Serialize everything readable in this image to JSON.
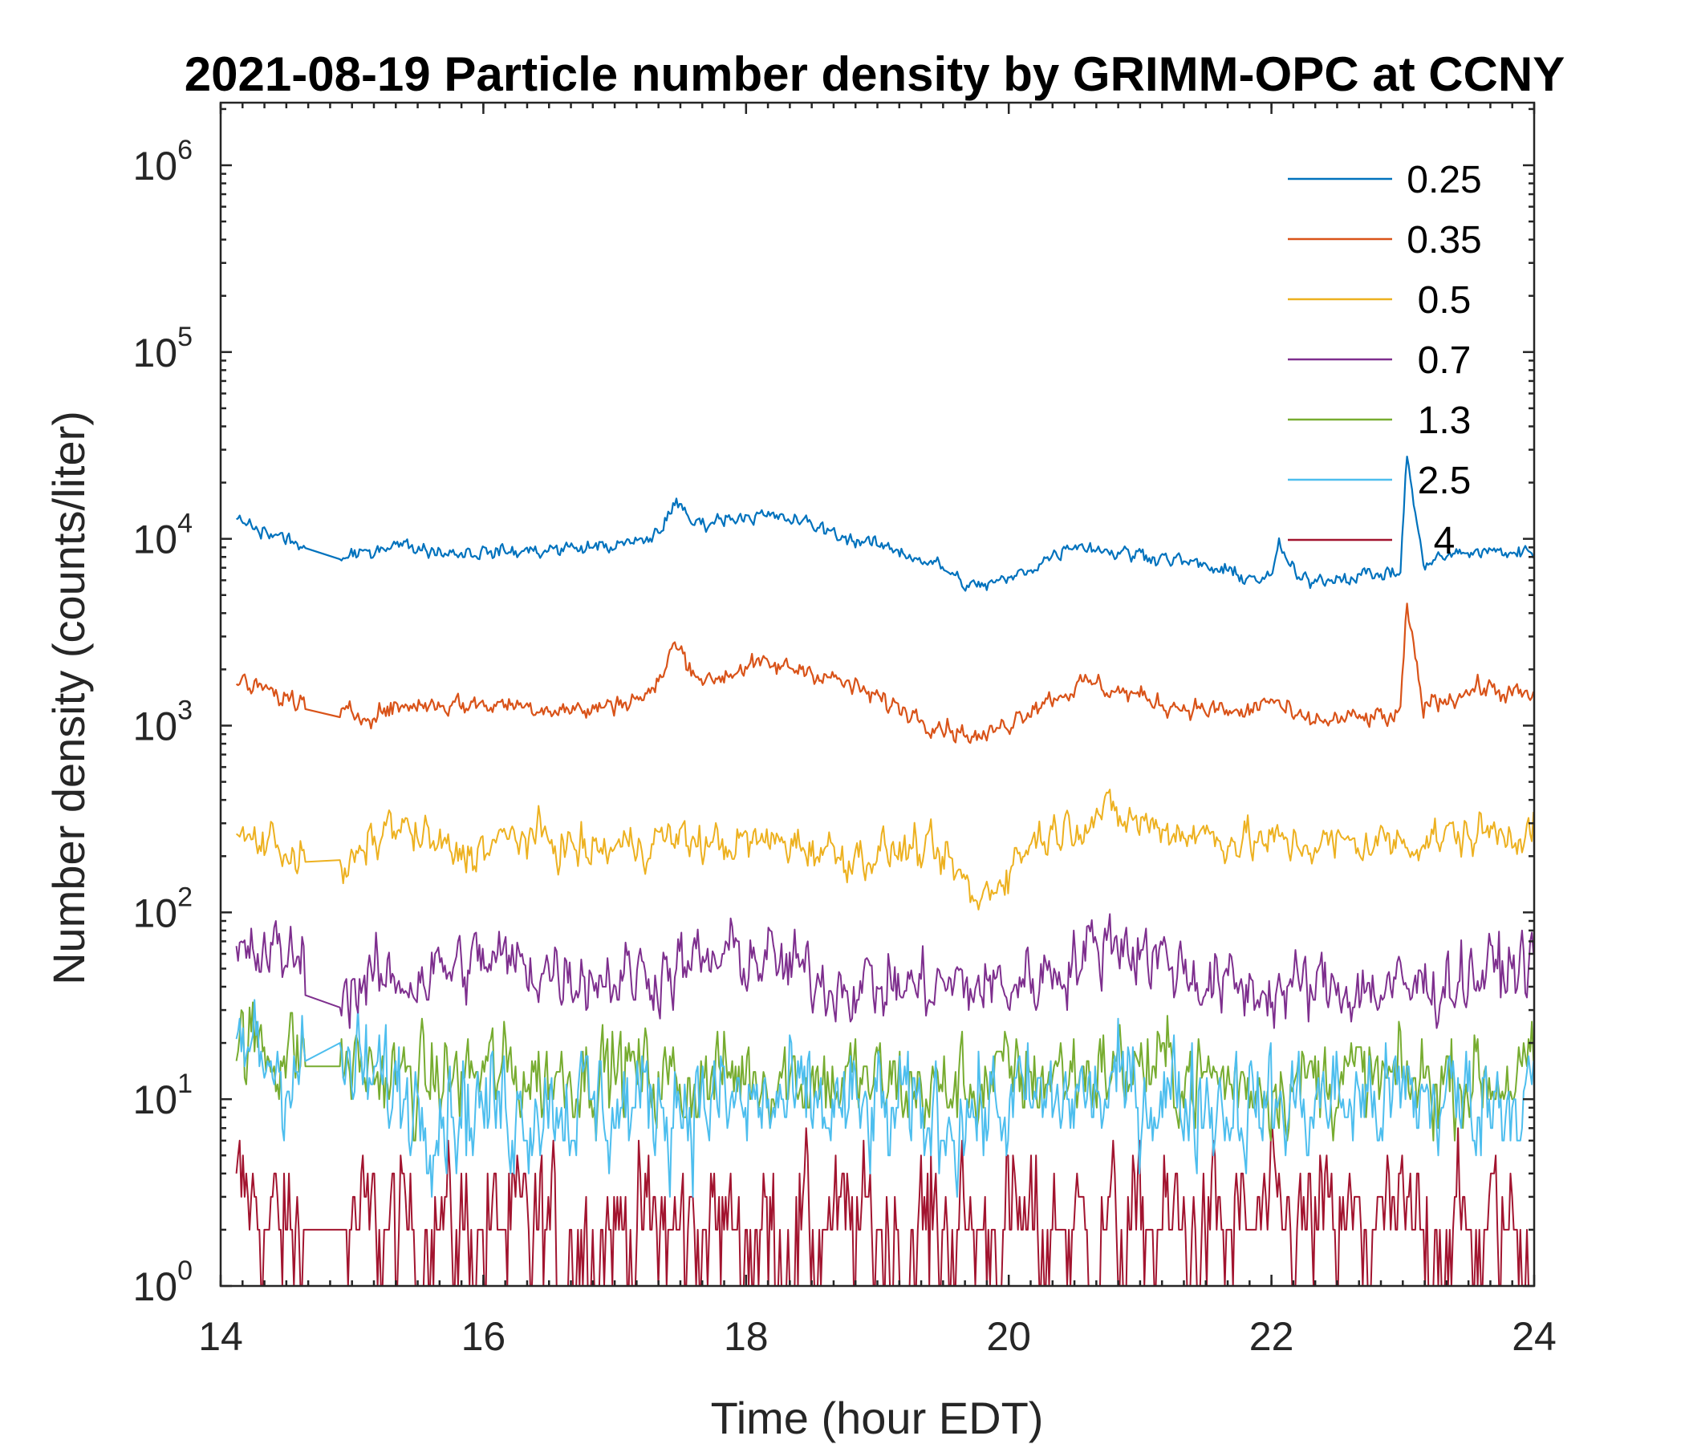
{
  "chart_data": {
    "type": "line",
    "title": "2021-08-19 Particle number density by GRIMM-OPC at CCNY",
    "xlabel": "Time (hour EDT)",
    "ylabel": "Number density (counts/liter)",
    "x_ticks": [
      "14",
      "16",
      "18",
      "20",
      "22",
      "24"
    ],
    "xlim": [
      14,
      24
    ],
    "y_scale": "log",
    "ylim": [
      1,
      2000000
    ],
    "y_ticks": [
      {
        "value": 1,
        "base": "10",
        "exp": "0"
      },
      {
        "value": 10,
        "base": "10",
        "exp": "1"
      },
      {
        "value": 100,
        "base": "10",
        "exp": "2"
      },
      {
        "value": 1000,
        "base": "10",
        "exp": "3"
      },
      {
        "value": 10000,
        "base": "10",
        "exp": "4"
      },
      {
        "value": 100000,
        "base": "10",
        "exp": "5"
      },
      {
        "value": 1000000,
        "base": "10",
        "exp": "6"
      }
    ],
    "grid": false,
    "legend_position": "top-right",
    "series": [
      {
        "name": "0.25",
        "color": "#0072BD",
        "x": [
          14.1,
          14.3,
          14.5,
          14.9,
          15.3,
          15.7,
          16.2,
          16.8,
          17.2,
          17.35,
          17.45,
          17.6,
          18.0,
          18.4,
          18.8,
          19.2,
          19.5,
          19.7,
          20.0,
          20.5,
          20.8,
          21.2,
          21.7,
          22.0,
          22.05,
          22.2,
          22.8,
          22.98,
          23.03,
          23.15,
          23.5,
          24.0
        ],
        "y": [
          13000,
          11000,
          10000,
          7500,
          9500,
          8500,
          8500,
          9000,
          9500,
          11000,
          16000,
          12000,
          13500,
          12500,
          10000,
          8500,
          7000,
          5500,
          6000,
          9500,
          8500,
          8000,
          6500,
          6000,
          9500,
          6000,
          6500,
          6500,
          28000,
          7500,
          8500,
          8500
        ]
      },
      {
        "name": "0.35",
        "color": "#D95319",
        "x": [
          14.1,
          14.4,
          14.9,
          15.5,
          16.2,
          16.8,
          17.3,
          17.45,
          17.7,
          18.0,
          18.5,
          19.0,
          19.5,
          19.8,
          20.2,
          20.6,
          21.2,
          21.8,
          22.0,
          22.2,
          22.8,
          22.98,
          23.03,
          23.15,
          23.6,
          24.0
        ],
        "y": [
          1700,
          1500,
          1100,
          1300,
          1300,
          1200,
          1500,
          2700,
          1700,
          2100,
          2000,
          1400,
          1000,
          850,
          1300,
          1700,
          1300,
          1150,
          1400,
          1050,
          1100,
          1100,
          4300,
          1300,
          1600,
          1400
        ]
      },
      {
        "name": "0.5",
        "color": "#EDB120",
        "x": [
          14.1,
          14.4,
          14.9,
          15.3,
          15.8,
          16.3,
          16.8,
          17.4,
          17.8,
          18.3,
          18.8,
          19.3,
          19.6,
          19.75,
          20.2,
          20.7,
          21.2,
          21.8,
          22.4,
          23.0,
          23.5,
          24.0
        ],
        "y": [
          250,
          240,
          150,
          300,
          200,
          260,
          210,
          250,
          230,
          240,
          200,
          220,
          170,
          110,
          250,
          340,
          280,
          240,
          230,
          240,
          260,
          280
        ]
      },
      {
        "name": "0.7",
        "color": "#7E2F8E",
        "x": [
          14.1,
          14.5,
          14.9,
          15.5,
          16.0,
          16.5,
          17.0,
          17.5,
          18.0,
          18.5,
          19.0,
          19.5,
          20.0,
          20.5,
          20.8,
          21.2,
          21.6,
          22.0,
          22.5,
          23.0,
          23.5,
          24.0
        ],
        "y": [
          55,
          60,
          40,
          45,
          55,
          50,
          45,
          50,
          60,
          45,
          40,
          40,
          40,
          55,
          75,
          55,
          40,
          38,
          40,
          38,
          45,
          55
        ]
      },
      {
        "name": "1.3",
        "color": "#77AC30",
        "x": [
          14.1,
          14.5,
          15.0,
          15.5,
          16.0,
          16.5,
          17.0,
          17.5,
          18.0,
          18.5,
          19.0,
          19.5,
          20.0,
          20.5,
          21.0,
          21.5,
          22.0,
          22.5,
          23.0,
          23.5,
          24.0
        ],
        "y": [
          20,
          18,
          15,
          12,
          14,
          13,
          15,
          12,
          14,
          13,
          12,
          11,
          13,
          14,
          15,
          13,
          12,
          13,
          12,
          13,
          13
        ]
      },
      {
        "name": "2.5",
        "color": "#4DBEEE",
        "x": [
          14.1,
          14.5,
          15.0,
          15.5,
          16.0,
          16.5,
          17.0,
          17.5,
          18.0,
          18.5,
          19.0,
          19.5,
          20.0,
          20.5,
          21.0,
          21.5,
          22.0,
          22.5,
          23.0,
          23.5,
          24.0
        ],
        "y": [
          20,
          15,
          14,
          10,
          9,
          10,
          9,
          10,
          9,
          9,
          8,
          8,
          9,
          10,
          11,
          10,
          9,
          10,
          10,
          10,
          11
        ]
      },
      {
        "name": "4",
        "color": "#A2142F",
        "x": [
          14.1,
          14.5,
          15.0,
          15.5,
          16.0,
          16.5,
          17.0,
          17.5,
          18.0,
          18.5,
          19.0,
          19.5,
          20.0,
          20.5,
          21.0,
          21.5,
          22.0,
          22.5,
          23.0,
          23.5,
          24.0
        ],
        "y": [
          3,
          2,
          2,
          2,
          2,
          2,
          2,
          2,
          2,
          2,
          2,
          2,
          2,
          2,
          2,
          2,
          2,
          2,
          2,
          2,
          2
        ]
      }
    ]
  }
}
